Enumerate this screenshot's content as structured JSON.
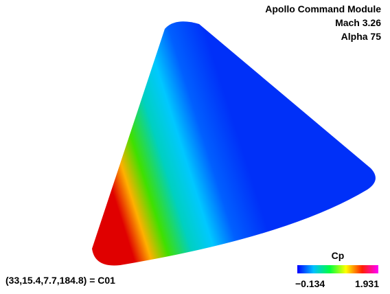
{
  "title_lines": [
    "Apollo Command Module",
    "Mach 3.26",
    "Alpha 75"
  ],
  "view_label": "(33,15.4,7.7,184.8) = C01",
  "colorbar": {
    "label": "Cp",
    "min_label": "−0.134",
    "max_label": "1.931"
  }
}
